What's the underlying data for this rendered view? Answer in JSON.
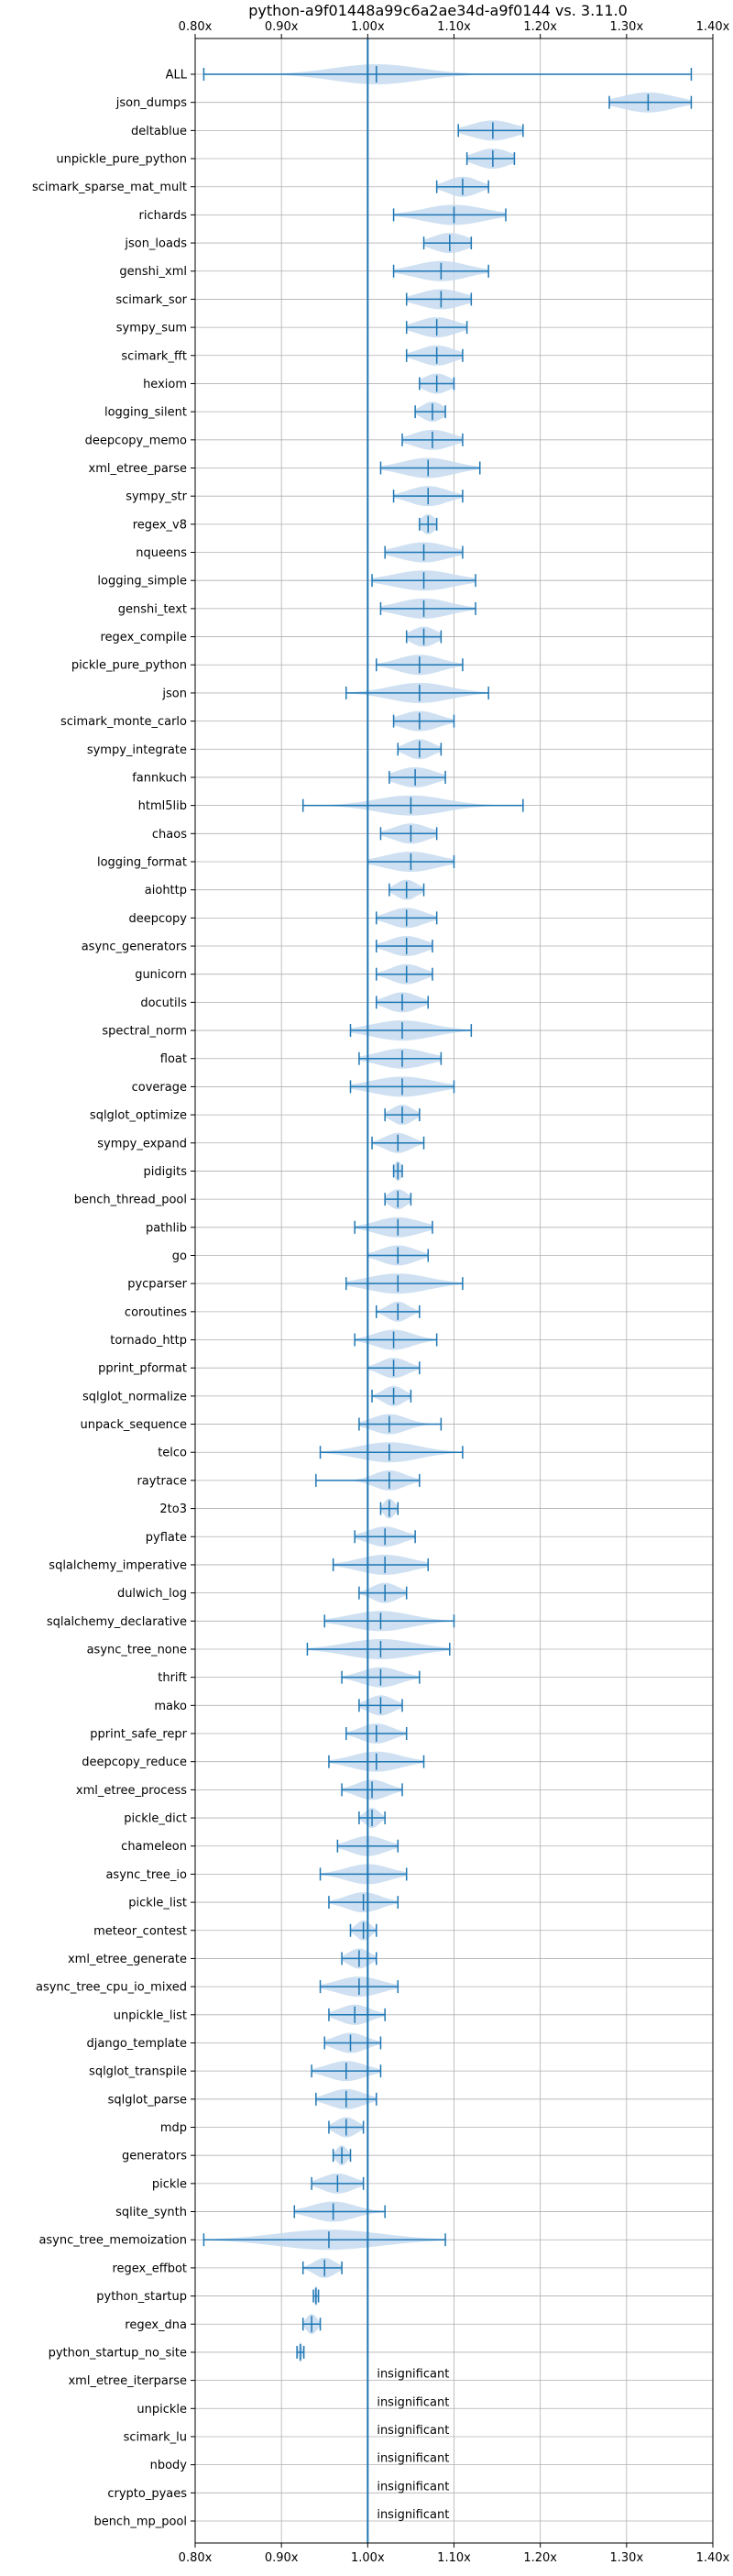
{
  "chart_data": {
    "type": "violin",
    "title": "python-a9f01448a99c6a2ae34d-a9f0144 vs. 3.11.0",
    "orientation": "horizontal",
    "xlim": [
      0.8,
      1.4
    ],
    "x_ticks": [
      {
        "value": 0.8,
        "label": "0.80x"
      },
      {
        "value": 0.9,
        "label": "0.90x"
      },
      {
        "value": 1.0,
        "label": "1.00x"
      },
      {
        "value": 1.1,
        "label": "1.10x"
      },
      {
        "value": 1.2,
        "label": "1.20x"
      },
      {
        "value": 1.3,
        "label": "1.30x"
      },
      {
        "value": 1.4,
        "label": "1.40x"
      }
    ],
    "grid": true,
    "reference_line": 1.0,
    "colors": {
      "violin": "#1f77b4",
      "violin_fill": "#c6dbef",
      "reference": "#1f77b4",
      "grid": "#b0b0b0"
    },
    "insignificant_label": "insignificant",
    "benchmarks": [
      {
        "name": "ALL",
        "min": 0.81,
        "max": 1.375,
        "mean": 1.01,
        "median": 1.01,
        "spread": 0.05
      },
      {
        "name": "json_dumps",
        "min": 1.28,
        "max": 1.375,
        "mean": 1.325,
        "median": 1.325,
        "spread": 0.03
      },
      {
        "name": "deltablue",
        "min": 1.105,
        "max": 1.18,
        "mean": 1.145,
        "median": 1.145,
        "spread": 0.025
      },
      {
        "name": "unpickle_pure_python",
        "min": 1.115,
        "max": 1.17,
        "mean": 1.145,
        "median": 1.145,
        "spread": 0.02
      },
      {
        "name": "scimark_sparse_mat_mult",
        "min": 1.08,
        "max": 1.14,
        "mean": 1.11,
        "median": 1.11,
        "spread": 0.018
      },
      {
        "name": "richards",
        "min": 1.03,
        "max": 1.16,
        "mean": 1.1,
        "median": 1.1,
        "spread": 0.035
      },
      {
        "name": "json_loads",
        "min": 1.065,
        "max": 1.12,
        "mean": 1.095,
        "median": 1.095,
        "spread": 0.02
      },
      {
        "name": "genshi_xml",
        "min": 1.03,
        "max": 1.14,
        "mean": 1.085,
        "median": 1.085,
        "spread": 0.03
      },
      {
        "name": "scimark_sor",
        "min": 1.045,
        "max": 1.12,
        "mean": 1.085,
        "median": 1.085,
        "spread": 0.025
      },
      {
        "name": "sympy_sum",
        "min": 1.045,
        "max": 1.115,
        "mean": 1.08,
        "median": 1.08,
        "spread": 0.022
      },
      {
        "name": "scimark_fft",
        "min": 1.045,
        "max": 1.11,
        "mean": 1.08,
        "median": 1.08,
        "spread": 0.02
      },
      {
        "name": "hexiom",
        "min": 1.06,
        "max": 1.1,
        "mean": 1.08,
        "median": 1.08,
        "spread": 0.015
      },
      {
        "name": "logging_silent",
        "min": 1.055,
        "max": 1.09,
        "mean": 1.075,
        "median": 1.075,
        "spread": 0.012
      },
      {
        "name": "deepcopy_memo",
        "min": 1.04,
        "max": 1.11,
        "mean": 1.075,
        "median": 1.075,
        "spread": 0.022
      },
      {
        "name": "xml_etree_parse",
        "min": 1.015,
        "max": 1.13,
        "mean": 1.07,
        "median": 1.07,
        "spread": 0.03
      },
      {
        "name": "sympy_str",
        "min": 1.03,
        "max": 1.11,
        "mean": 1.07,
        "median": 1.07,
        "spread": 0.022
      },
      {
        "name": "regex_v8",
        "min": 1.06,
        "max": 1.08,
        "mean": 1.07,
        "median": 1.07,
        "spread": 0.008
      },
      {
        "name": "nqueens",
        "min": 1.02,
        "max": 1.11,
        "mean": 1.065,
        "median": 1.065,
        "spread": 0.028
      },
      {
        "name": "logging_simple",
        "min": 1.005,
        "max": 1.125,
        "mean": 1.065,
        "median": 1.065,
        "spread": 0.035
      },
      {
        "name": "genshi_text",
        "min": 1.015,
        "max": 1.125,
        "mean": 1.065,
        "median": 1.065,
        "spread": 0.03
      },
      {
        "name": "regex_compile",
        "min": 1.045,
        "max": 1.085,
        "mean": 1.065,
        "median": 1.065,
        "spread": 0.014
      },
      {
        "name": "pickle_pure_python",
        "min": 1.01,
        "max": 1.11,
        "mean": 1.06,
        "median": 1.06,
        "spread": 0.025
      },
      {
        "name": "json",
        "min": 0.975,
        "max": 1.14,
        "mean": 1.06,
        "median": 1.06,
        "spread": 0.035
      },
      {
        "name": "scimark_monte_carlo",
        "min": 1.03,
        "max": 1.1,
        "mean": 1.06,
        "median": 1.06,
        "spread": 0.022
      },
      {
        "name": "sympy_integrate",
        "min": 1.035,
        "max": 1.085,
        "mean": 1.06,
        "median": 1.06,
        "spread": 0.015
      },
      {
        "name": "fannkuch",
        "min": 1.025,
        "max": 1.09,
        "mean": 1.055,
        "median": 1.055,
        "spread": 0.022
      },
      {
        "name": "html5lib",
        "min": 0.925,
        "max": 1.18,
        "mean": 1.05,
        "median": 1.05,
        "spread": 0.04
      },
      {
        "name": "chaos",
        "min": 1.015,
        "max": 1.08,
        "mean": 1.05,
        "median": 1.05,
        "spread": 0.02
      },
      {
        "name": "logging_format",
        "min": 1.0,
        "max": 1.1,
        "mean": 1.05,
        "median": 1.05,
        "spread": 0.03
      },
      {
        "name": "aiohttp",
        "min": 1.025,
        "max": 1.065,
        "mean": 1.045,
        "median": 1.045,
        "spread": 0.012
      },
      {
        "name": "deepcopy",
        "min": 1.01,
        "max": 1.08,
        "mean": 1.045,
        "median": 1.045,
        "spread": 0.02
      },
      {
        "name": "async_generators",
        "min": 1.01,
        "max": 1.075,
        "mean": 1.045,
        "median": 1.045,
        "spread": 0.02
      },
      {
        "name": "gunicorn",
        "min": 1.01,
        "max": 1.075,
        "mean": 1.045,
        "median": 1.045,
        "spread": 0.018
      },
      {
        "name": "docutils",
        "min": 1.01,
        "max": 1.07,
        "mean": 1.04,
        "median": 1.04,
        "spread": 0.018
      },
      {
        "name": "spectral_norm",
        "min": 0.98,
        "max": 1.12,
        "mean": 1.04,
        "median": 1.04,
        "spread": 0.035
      },
      {
        "name": "float",
        "min": 0.99,
        "max": 1.085,
        "mean": 1.04,
        "median": 1.04,
        "spread": 0.028
      },
      {
        "name": "coverage",
        "min": 0.98,
        "max": 1.1,
        "mean": 1.04,
        "median": 1.04,
        "spread": 0.035
      },
      {
        "name": "sqlglot_optimize",
        "min": 1.02,
        "max": 1.06,
        "mean": 1.04,
        "median": 1.04,
        "spread": 0.012
      },
      {
        "name": "sympy_expand",
        "min": 1.005,
        "max": 1.065,
        "mean": 1.035,
        "median": 1.035,
        "spread": 0.015
      },
      {
        "name": "pidigits",
        "min": 1.03,
        "max": 1.04,
        "mean": 1.035,
        "median": 1.035,
        "spread": 0.004
      },
      {
        "name": "bench_thread_pool",
        "min": 1.02,
        "max": 1.05,
        "mean": 1.035,
        "median": 1.035,
        "spread": 0.01
      },
      {
        "name": "pathlib",
        "min": 0.985,
        "max": 1.075,
        "mean": 1.035,
        "median": 1.035,
        "spread": 0.025
      },
      {
        "name": "go",
        "min": 1.0,
        "max": 1.07,
        "mean": 1.035,
        "median": 1.035,
        "spread": 0.02
      },
      {
        "name": "pycparser",
        "min": 0.975,
        "max": 1.11,
        "mean": 1.035,
        "median": 1.035,
        "spread": 0.035
      },
      {
        "name": "coroutines",
        "min": 1.01,
        "max": 1.06,
        "mean": 1.035,
        "median": 1.035,
        "spread": 0.012
      },
      {
        "name": "tornado_http",
        "min": 0.985,
        "max": 1.08,
        "mean": 1.03,
        "median": 1.03,
        "spread": 0.022
      },
      {
        "name": "pprint_pformat",
        "min": 1.0,
        "max": 1.06,
        "mean": 1.03,
        "median": 1.03,
        "spread": 0.016
      },
      {
        "name": "sqlglot_normalize",
        "min": 1.005,
        "max": 1.05,
        "mean": 1.03,
        "median": 1.03,
        "spread": 0.012
      },
      {
        "name": "unpack_sequence",
        "min": 0.99,
        "max": 1.085,
        "mean": 1.025,
        "median": 1.025,
        "spread": 0.02
      },
      {
        "name": "telco",
        "min": 0.945,
        "max": 1.11,
        "mean": 1.025,
        "median": 1.025,
        "spread": 0.035
      },
      {
        "name": "raytrace",
        "min": 0.94,
        "max": 1.06,
        "mean": 1.025,
        "median": 1.025,
        "spread": 0.018
      },
      {
        "name": "2to3",
        "min": 1.015,
        "max": 1.035,
        "mean": 1.025,
        "median": 1.025,
        "spread": 0.006
      },
      {
        "name": "pyflate",
        "min": 0.985,
        "max": 1.055,
        "mean": 1.02,
        "median": 1.02,
        "spread": 0.02
      },
      {
        "name": "sqlalchemy_imperative",
        "min": 0.96,
        "max": 1.07,
        "mean": 1.02,
        "median": 1.02,
        "spread": 0.03
      },
      {
        "name": "dulwich_log",
        "min": 0.99,
        "max": 1.045,
        "mean": 1.02,
        "median": 1.02,
        "spread": 0.015
      },
      {
        "name": "sqlalchemy_declarative",
        "min": 0.95,
        "max": 1.1,
        "mean": 1.015,
        "median": 1.015,
        "spread": 0.035
      },
      {
        "name": "async_tree_none",
        "min": 0.93,
        "max": 1.095,
        "mean": 1.015,
        "median": 1.015,
        "spread": 0.04
      },
      {
        "name": "thrift",
        "min": 0.97,
        "max": 1.06,
        "mean": 1.015,
        "median": 1.015,
        "spread": 0.022
      },
      {
        "name": "mako",
        "min": 0.99,
        "max": 1.04,
        "mean": 1.015,
        "median": 1.015,
        "spread": 0.015
      },
      {
        "name": "pprint_safe_repr",
        "min": 0.975,
        "max": 1.045,
        "mean": 1.01,
        "median": 1.01,
        "spread": 0.018
      },
      {
        "name": "deepcopy_reduce",
        "min": 0.955,
        "max": 1.065,
        "mean": 1.01,
        "median": 1.01,
        "spread": 0.028
      },
      {
        "name": "xml_etree_process",
        "min": 0.97,
        "max": 1.04,
        "mean": 1.005,
        "median": 1.005,
        "spread": 0.018
      },
      {
        "name": "pickle_dict",
        "min": 0.99,
        "max": 1.02,
        "mean": 1.005,
        "median": 1.005,
        "spread": 0.008
      },
      {
        "name": "chameleon",
        "min": 0.965,
        "max": 1.035,
        "mean": 1.0,
        "median": 1.0,
        "spread": 0.02
      },
      {
        "name": "async_tree_io",
        "min": 0.945,
        "max": 1.045,
        "mean": 1.0,
        "median": 1.0,
        "spread": 0.025
      },
      {
        "name": "pickle_list",
        "min": 0.955,
        "max": 1.035,
        "mean": 0.995,
        "median": 0.995,
        "spread": 0.02
      },
      {
        "name": "meteor_contest",
        "min": 0.98,
        "max": 1.01,
        "mean": 0.995,
        "median": 0.995,
        "spread": 0.008
      },
      {
        "name": "xml_etree_generate",
        "min": 0.97,
        "max": 1.01,
        "mean": 0.99,
        "median": 0.99,
        "spread": 0.012
      },
      {
        "name": "async_tree_cpu_io_mixed",
        "min": 0.945,
        "max": 1.035,
        "mean": 0.99,
        "median": 0.99,
        "spread": 0.025
      },
      {
        "name": "unpickle_list",
        "min": 0.955,
        "max": 1.02,
        "mean": 0.985,
        "median": 0.985,
        "spread": 0.018
      },
      {
        "name": "django_template",
        "min": 0.95,
        "max": 1.015,
        "mean": 0.98,
        "median": 0.98,
        "spread": 0.018
      },
      {
        "name": "sqlglot_transpile",
        "min": 0.935,
        "max": 1.015,
        "mean": 0.975,
        "median": 0.975,
        "spread": 0.022
      },
      {
        "name": "sqlglot_parse",
        "min": 0.94,
        "max": 1.01,
        "mean": 0.975,
        "median": 0.975,
        "spread": 0.02
      },
      {
        "name": "mdp",
        "min": 0.955,
        "max": 0.995,
        "mean": 0.975,
        "median": 0.975,
        "spread": 0.012
      },
      {
        "name": "generators",
        "min": 0.96,
        "max": 0.98,
        "mean": 0.97,
        "median": 0.97,
        "spread": 0.006
      },
      {
        "name": "pickle",
        "min": 0.935,
        "max": 0.995,
        "mean": 0.965,
        "median": 0.965,
        "spread": 0.018
      },
      {
        "name": "sqlite_synth",
        "min": 0.915,
        "max": 1.02,
        "mean": 0.96,
        "median": 0.96,
        "spread": 0.025
      },
      {
        "name": "async_tree_memoization",
        "min": 0.81,
        "max": 1.09,
        "mean": 0.955,
        "median": 0.955,
        "spread": 0.06
      },
      {
        "name": "regex_effbot",
        "min": 0.925,
        "max": 0.97,
        "mean": 0.95,
        "median": 0.95,
        "spread": 0.012
      },
      {
        "name": "python_startup",
        "min": 0.937,
        "max": 0.943,
        "mean": 0.94,
        "median": 0.94,
        "spread": 0.002
      },
      {
        "name": "regex_dna",
        "min": 0.925,
        "max": 0.945,
        "mean": 0.935,
        "median": 0.935,
        "spread": 0.006
      },
      {
        "name": "python_startup_no_site",
        "min": 0.918,
        "max": 0.926,
        "mean": 0.922,
        "median": 0.922,
        "spread": 0.002
      },
      {
        "name": "xml_etree_iterparse",
        "insignificant": true
      },
      {
        "name": "unpickle",
        "insignificant": true
      },
      {
        "name": "scimark_lu",
        "insignificant": true
      },
      {
        "name": "nbody",
        "insignificant": true
      },
      {
        "name": "crypto_pyaes",
        "insignificant": true
      },
      {
        "name": "bench_mp_pool",
        "insignificant": true
      }
    ]
  }
}
